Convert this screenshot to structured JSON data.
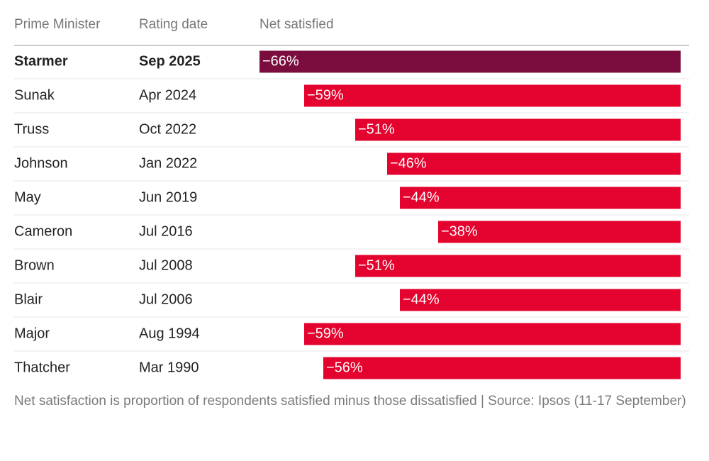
{
  "chart_data": {
    "type": "bar",
    "orientation": "horizontal",
    "column_headers": [
      "Prime Minister",
      "Rating date",
      "Net satisfied"
    ],
    "categories": [
      "Starmer",
      "Sunak",
      "Truss",
      "Johnson",
      "May",
      "Cameron",
      "Brown",
      "Blair",
      "Major",
      "Thatcher"
    ],
    "dates": [
      "Sep 2025",
      "Apr 2024",
      "Oct 2022",
      "Jan 2022",
      "Jun 2019",
      "Jul 2016",
      "Jul 2008",
      "Jul 2006",
      "Aug 1994",
      "Mar 1990"
    ],
    "values": [
      -66,
      -59,
      -51,
      -46,
      -44,
      -38,
      -51,
      -44,
      -59,
      -56
    ],
    "value_labels": [
      "−66%",
      "−59%",
      "−51%",
      "−46%",
      "−44%",
      "−38%",
      "−51%",
      "−44%",
      "−59%",
      "−56%"
    ],
    "color": "#e4032e",
    "highlight_color": "#7b0d3e",
    "highlight": [
      0
    ],
    "note": "Net satisfaction is proportion of respondents satisfied minus those dissatisfied | Source: Ipsos (11-17 September)"
  }
}
